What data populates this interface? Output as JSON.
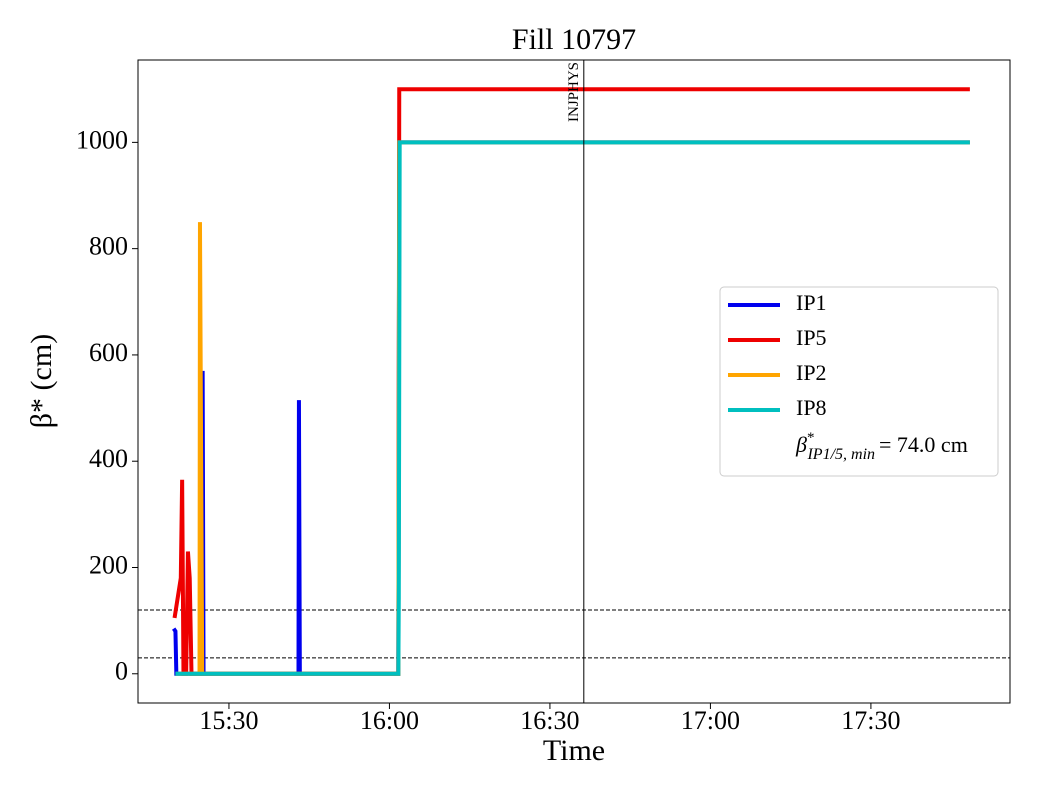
{
  "chart_data": {
    "type": "line",
    "title": "Fill 10797",
    "xlabel": "Time",
    "ylabel": "β* (cm)",
    "xlim": [
      "15:13:00",
      "17:56:00"
    ],
    "xticks": [
      "15:30",
      "16:00",
      "16:30",
      "17:00",
      "17:30"
    ],
    "ylim": [
      -55,
      1155
    ],
    "yticks": [
      0,
      200,
      400,
      600,
      800,
      1000
    ],
    "series": [
      {
        "name": "IP1",
        "color": "#0000ee",
        "x": [
          "15:19:40",
          "15:20:00",
          "15:20:10",
          "15:25:00",
          "15:25:05",
          "15:25:15",
          "15:43:00",
          "15:43:05",
          "15:43:15",
          "16:01:40",
          "16:01:50",
          "17:48:30"
        ],
        "values": [
          85,
          80,
          0,
          0,
          570,
          0,
          0,
          515,
          0,
          0,
          1000,
          1000
        ]
      },
      {
        "name": "IP5",
        "color": "#ee0000",
        "x": [
          "15:19:50",
          "15:21:00",
          "15:21:15",
          "15:21:30",
          "15:22:00",
          "15:22:20",
          "15:22:40",
          "15:23:00",
          "16:01:40",
          "16:01:50",
          "17:48:30"
        ],
        "values": [
          105,
          180,
          365,
          0,
          0,
          230,
          180,
          0,
          0,
          1100,
          1100
        ]
      },
      {
        "name": "IP2",
        "color": "#ffa500",
        "x": [
          "15:20:00",
          "15:24:30",
          "15:24:35",
          "15:25:00",
          "16:01:40",
          "16:01:50",
          "17:48:30"
        ],
        "values": [
          0,
          0,
          850,
          0,
          0,
          1000,
          1000
        ]
      },
      {
        "name": "IP8",
        "color": "#00bfbf",
        "x": [
          "15:20:00",
          "16:01:40",
          "16:01:45",
          "16:01:55",
          "17:48:30"
        ],
        "values": [
          0,
          0,
          145,
          1000,
          1000
        ]
      }
    ],
    "hlines": [
      120,
      30
    ],
    "vline": {
      "x": "16:36:20",
      "label": "INJPHYS"
    },
    "legend_note": {
      "symbol": "β",
      "sup": "*",
      "sub": "IP1/5, min",
      "text": "= 74.0 cm"
    },
    "legend": "center right"
  }
}
